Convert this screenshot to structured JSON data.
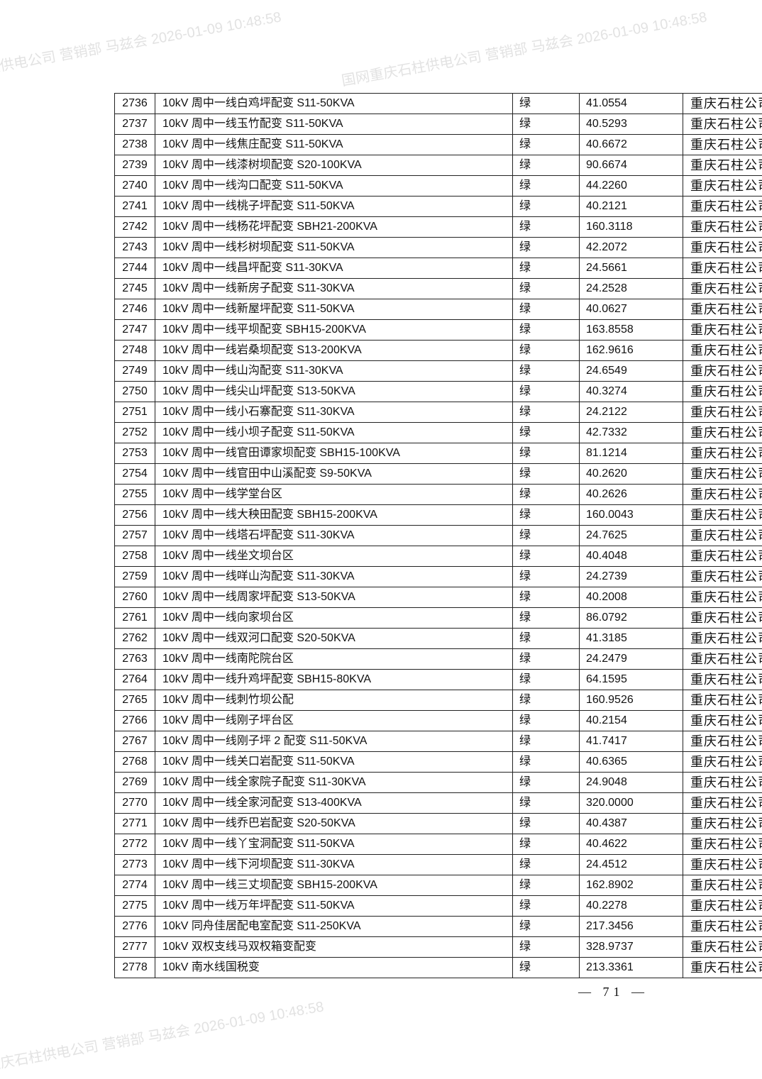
{
  "watermark": "国网重庆石柱供电公司 营销部 马兹会 2026-01-09 10:48:58",
  "page_number": "— 71 —",
  "table": {
    "rows": [
      [
        "2736",
        "10kV 周中一线白鸡坪配变 S11-50KVA",
        "绿",
        "41.0554",
        "重庆石柱公司"
      ],
      [
        "2737",
        "10kV 周中一线玉竹配变 S11-50KVA",
        "绿",
        "40.5293",
        "重庆石柱公司"
      ],
      [
        "2738",
        "10kV 周中一线焦庄配变 S11-50KVA",
        "绿",
        "40.6672",
        "重庆石柱公司"
      ],
      [
        "2739",
        "10kV 周中一线漆树坝配变 S20-100KVA",
        "绿",
        "90.6674",
        "重庆石柱公司"
      ],
      [
        "2740",
        "10kV 周中一线沟口配变 S11-50KVA",
        "绿",
        "44.2260",
        "重庆石柱公司"
      ],
      [
        "2741",
        "10kV 周中一线桃子坪配变 S11-50KVA",
        "绿",
        "40.2121",
        "重庆石柱公司"
      ],
      [
        "2742",
        "10kV 周中一线杨花坪配变 SBH21-200KVA",
        "绿",
        "160.3118",
        "重庆石柱公司"
      ],
      [
        "2743",
        "10kV 周中一线杉树坝配变 S11-50KVA",
        "绿",
        "42.2072",
        "重庆石柱公司"
      ],
      [
        "2744",
        "10kV 周中一线昌坪配变 S11-30KVA",
        "绿",
        "24.5661",
        "重庆石柱公司"
      ],
      [
        "2745",
        "10kV 周中一线新房子配变 S11-30KVA",
        "绿",
        "24.2528",
        "重庆石柱公司"
      ],
      [
        "2746",
        "10kV 周中一线新屋坪配变 S11-50KVA",
        "绿",
        "40.0627",
        "重庆石柱公司"
      ],
      [
        "2747",
        "10kV 周中一线平坝配变 SBH15-200KVA",
        "绿",
        "163.8558",
        "重庆石柱公司"
      ],
      [
        "2748",
        "10kV 周中一线岩桑坝配变 S13-200KVA",
        "绿",
        "162.9616",
        "重庆石柱公司"
      ],
      [
        "2749",
        "10kV 周中一线山沟配变 S11-30KVA",
        "绿",
        "24.6549",
        "重庆石柱公司"
      ],
      [
        "2750",
        "10kV 周中一线尖山坪配变 S13-50KVA",
        "绿",
        "40.3274",
        "重庆石柱公司"
      ],
      [
        "2751",
        "10kV 周中一线小石寨配变 S11-30KVA",
        "绿",
        "24.2122",
        "重庆石柱公司"
      ],
      [
        "2752",
        "10kV 周中一线小坝子配变 S11-50KVA",
        "绿",
        "42.7332",
        "重庆石柱公司"
      ],
      [
        "2753",
        "10kV 周中一线官田谭家坝配变 SBH15-100KVA",
        "绿",
        "81.1214",
        "重庆石柱公司"
      ],
      [
        "2754",
        "10kV 周中一线官田中山溪配变 S9-50KVA",
        "绿",
        "40.2620",
        "重庆石柱公司"
      ],
      [
        "2755",
        "10kV 周中一线学堂台区",
        "绿",
        "40.2626",
        "重庆石柱公司"
      ],
      [
        "2756",
        "10kV 周中一线大秧田配变 SBH15-200KVA",
        "绿",
        "160.0043",
        "重庆石柱公司"
      ],
      [
        "2757",
        "10kV 周中一线塔石坪配变 S11-30KVA",
        "绿",
        "24.7625",
        "重庆石柱公司"
      ],
      [
        "2758",
        "10kV 周中一线坐文坝台区",
        "绿",
        "40.4048",
        "重庆石柱公司"
      ],
      [
        "2759",
        "10kV 周中一线咩山沟配变 S11-30KVA",
        "绿",
        "24.2739",
        "重庆石柱公司"
      ],
      [
        "2760",
        "10kV 周中一线周家坪配变 S13-50KVA",
        "绿",
        "40.2008",
        "重庆石柱公司"
      ],
      [
        "2761",
        "10kV 周中一线向家坝台区",
        "绿",
        "86.0792",
        "重庆石柱公司"
      ],
      [
        "2762",
        "10kV 周中一线双河口配变 S20-50KVA",
        "绿",
        "41.3185",
        "重庆石柱公司"
      ],
      [
        "2763",
        "10kV 周中一线南陀院台区",
        "绿",
        "24.2479",
        "重庆石柱公司"
      ],
      [
        "2764",
        "10kV 周中一线升鸡坪配变 SBH15-80KVA",
        "绿",
        "64.1595",
        "重庆石柱公司"
      ],
      [
        "2765",
        "10kV 周中一线刺竹坝公配",
        "绿",
        "160.9526",
        "重庆石柱公司"
      ],
      [
        "2766",
        "10kV 周中一线刚子坪台区",
        "绿",
        "40.2154",
        "重庆石柱公司"
      ],
      [
        "2767",
        "10kV 周中一线刚子坪 2 配变 S11-50KVA",
        "绿",
        "41.7417",
        "重庆石柱公司"
      ],
      [
        "2768",
        "10kV 周中一线关口岩配变 S11-50KVA",
        "绿",
        "40.6365",
        "重庆石柱公司"
      ],
      [
        "2769",
        "10kV 周中一线全家院子配变 S11-30KVA",
        "绿",
        "24.9048",
        "重庆石柱公司"
      ],
      [
        "2770",
        "10kV 周中一线全家河配变 S13-400KVA",
        "绿",
        "320.0000",
        "重庆石柱公司"
      ],
      [
        "2771",
        "10kV 周中一线乔巴岩配变 S20-50KVA",
        "绿",
        "40.4387",
        "重庆石柱公司"
      ],
      [
        "2772",
        "10kV 周中一线丫宝洞配变 S11-50KVA",
        "绿",
        "40.4622",
        "重庆石柱公司"
      ],
      [
        "2773",
        "10kV 周中一线下河坝配变 S11-30KVA",
        "绿",
        "24.4512",
        "重庆石柱公司"
      ],
      [
        "2774",
        "10kV 周中一线三丈坝配变 SBH15-200KVA",
        "绿",
        "162.8902",
        "重庆石柱公司"
      ],
      [
        "2775",
        "10kV 周中一线万年坪配变 S11-50KVA",
        "绿",
        "40.2278",
        "重庆石柱公司"
      ],
      [
        "2776",
        "10kV 同舟佳居配电室配变 S11-250KVA",
        "绿",
        "217.3456",
        "重庆石柱公司"
      ],
      [
        "2777",
        "10kV 双权支线马双权箱变配变",
        "绿",
        "328.9737",
        "重庆石柱公司"
      ],
      [
        "2778",
        "10kV 南水线国税变",
        "绿",
        "213.3361",
        "重庆石柱公司"
      ]
    ]
  }
}
